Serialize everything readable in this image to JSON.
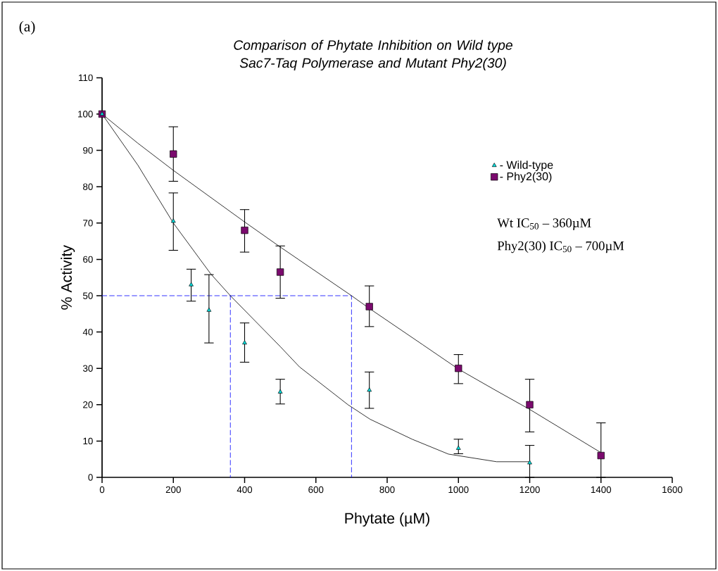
{
  "chart_data": {
    "type": "scatter",
    "title": "Comparison of Phytate Inhibition on Wild type Sac7-Taq Polymerase and Mutant Phy2(30)",
    "xlabel": "Phytate (µM)",
    "ylabel": "% Activity",
    "annotations": [
      "(a)",
      "Wt IC$_{50}$  – 360µM",
      "Phy2(30) IC$_{50}$  – 700µM"
    ],
    "xlim": [
      0,
      1600
    ],
    "ylim": [
      0,
      110
    ],
    "xticks": [
      0,
      200,
      400,
      600,
      800,
      1000,
      1200,
      1400,
      1600
    ],
    "yticks": [
      0,
      10,
      20,
      30,
      40,
      50,
      60,
      70,
      80,
      90,
      100,
      110
    ],
    "legend": "top right",
    "series": [
      {
        "name": "- Wild-type",
        "marker": "triangle",
        "color": "#00e0e0",
        "x": [
          0,
          200,
          250,
          300,
          400,
          500,
          750,
          1000,
          1200
        ],
        "values": [
          100,
          70.5,
          53,
          46,
          37,
          23.5,
          24,
          8,
          4
        ],
        "errors": [
          null,
          [
            62.5,
            78.3
          ],
          [
            48.5,
            57.3
          ],
          [
            37,
            55.8
          ],
          [
            31.7,
            42.5
          ],
          [
            20.2,
            27
          ],
          [
            19,
            29
          ],
          [
            6.5,
            10.5
          ],
          [
            0,
            8.8
          ]
        ]
      },
      {
        "name": "- Phy2(30)",
        "marker": "square",
        "color": "#7b0a6e",
        "x": [
          0,
          200,
          400,
          500,
          750,
          1000,
          1200,
          1400
        ],
        "values": [
          100,
          89,
          68,
          56.5,
          47,
          30,
          20,
          6
        ],
        "errors": [
          null,
          [
            81.5,
            96.5
          ],
          [
            62,
            73.7
          ],
          [
            49.3,
            63.7
          ],
          [
            41.5,
            52.7
          ],
          [
            25.8,
            33.8
          ],
          [
            12.5,
            27
          ],
          [
            0,
            15
          ]
        ]
      },
      {
        "type": "line",
        "color": "#000000",
        "line_style": "solid",
        "x": [
          0,
          100,
          200,
          305,
          360,
          500,
          554,
          690,
          752,
          870,
          972,
          1107,
          1200
        ],
        "values": [
          100,
          86,
          70,
          56,
          50,
          36,
          30.4,
          20,
          16,
          10.5,
          6.4,
          4.3,
          4.3
        ]
      },
      {
        "type": "line",
        "color": "#000000",
        "line_style": "solid",
        "x": [
          0,
          100,
          200,
          400,
          500,
          700,
          750,
          900,
          1000,
          1100,
          1200,
          1400
        ],
        "values": [
          100,
          92,
          84.5,
          70.3,
          63.4,
          50,
          46.5,
          36.5,
          29.8,
          24.2,
          18.7,
          6.8
        ]
      },
      {
        "type": "line",
        "color": "#0000ff",
        "line_style": "dashed",
        "x": [
          0,
          360,
          360
        ],
        "values": [
          50,
          50,
          0
        ]
      },
      {
        "type": "line",
        "color": "#0000ff",
        "line_style": "dashed",
        "x": [
          360,
          700,
          700
        ],
        "values": [
          50,
          50,
          0
        ]
      }
    ]
  }
}
